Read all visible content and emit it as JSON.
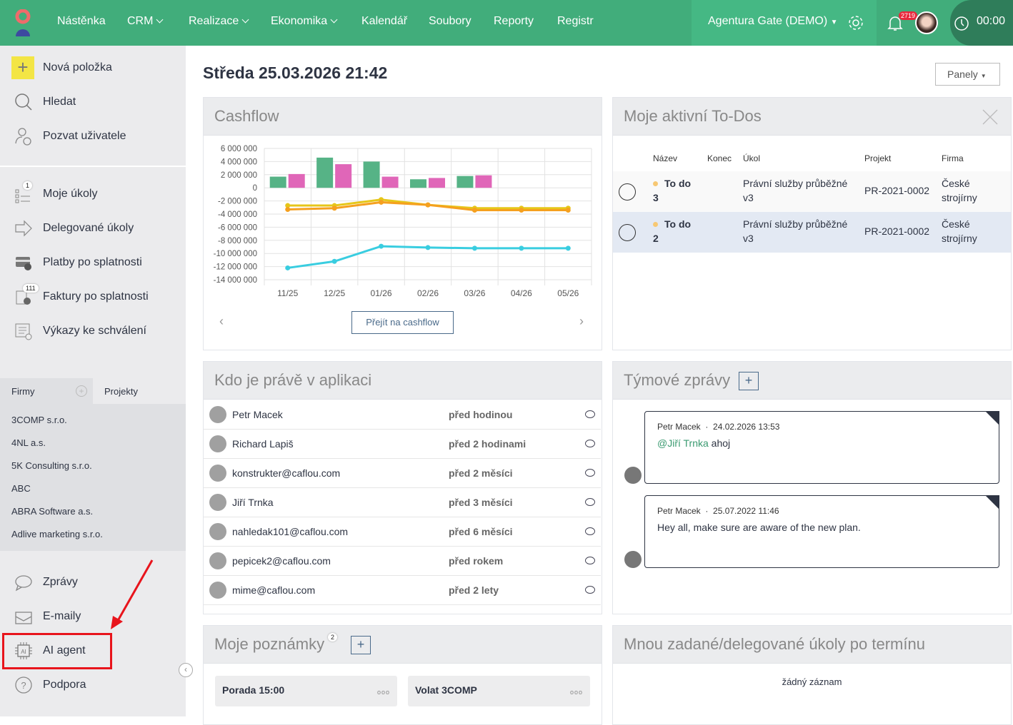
{
  "topbar": {
    "nav": [
      "Nástěnka",
      "CRM",
      "Realizace",
      "Ekonomika",
      "Kalendář",
      "Soubory",
      "Reporty",
      "Registr"
    ],
    "org": "Agentura Gate (DEMO)",
    "notifications": "2719",
    "timer": "00:00"
  },
  "sidebar": {
    "top": [
      "Nová položka",
      "Hledat",
      "Pozvat uživatele"
    ],
    "tasks": [
      {
        "label": "Moje úkoly",
        "badge": "1"
      },
      {
        "label": "Delegované úkoly"
      },
      {
        "label": "Platby po splatnosti"
      },
      {
        "label": "Faktury po splatnosti",
        "badge": "111"
      },
      {
        "label": "Výkazy ke schválení"
      }
    ],
    "tabs": [
      "Firmy",
      "Projekty"
    ],
    "firms": [
      "3COMP s.r.o.",
      "4NL a.s.",
      "5K Consulting s.r.o.",
      "ABC",
      "ABRA Software a.s.",
      "Adlive marketing s.r.o."
    ],
    "bottom": [
      "Zprávy",
      "E-maily",
      "AI agent",
      "Podpora"
    ]
  },
  "header": {
    "date": "Středa 25.03.2026 21:42",
    "panels": "Panely"
  },
  "cashflow": {
    "title": "Cashflow",
    "button": "Přejít na cashflow"
  },
  "chart_data": {
    "type": "bar",
    "categories": [
      "11/25",
      "12/25",
      "01/26",
      "02/26",
      "03/26",
      "04/26",
      "05/26"
    ],
    "ylim": [
      -14000000,
      6000000
    ],
    "yticks": [
      "6 000 000",
      "4 000 000",
      "2 000 000",
      "0",
      "-2 000 000",
      "-4 000 000",
      "-6 000 000",
      "-8 000 000",
      "-10 000 000",
      "-12 000 000",
      "-14 000 000"
    ],
    "bars": [
      {
        "name": "income",
        "color": "#56b386",
        "values": [
          1700000,
          4600000,
          4000000,
          1300000,
          1800000,
          0,
          0
        ]
      },
      {
        "name": "expense",
        "color": "#e066b8",
        "values": [
          2100000,
          3600000,
          1700000,
          1500000,
          1900000,
          0,
          0
        ]
      }
    ],
    "lines": [
      {
        "name": "yellow",
        "color": "#e6c619",
        "values": [
          -2700000,
          -2700000,
          -1800000,
          -2600000,
          -3100000,
          -3100000,
          -3100000
        ]
      },
      {
        "name": "orange",
        "color": "#f5a01f",
        "values": [
          -3300000,
          -3100000,
          -2200000,
          -2600000,
          -3400000,
          -3400000,
          -3400000
        ]
      },
      {
        "name": "cyan",
        "color": "#39cde0",
        "values": [
          -12200000,
          -11200000,
          -8900000,
          -9100000,
          -9200000,
          -9200000,
          -9200000
        ]
      }
    ]
  },
  "todos": {
    "title": "Moje aktivní To-Dos",
    "columns": [
      "Název",
      "Konec",
      "Úkol",
      "Projekt",
      "Firma"
    ],
    "rows": [
      {
        "name": "To do",
        "num": "3",
        "task": "Právní služby průběžné",
        "task2": "v3",
        "project": "PR-2021-0002",
        "firm": "České",
        "firm2": "strojírny"
      },
      {
        "name": "To do",
        "num": "2",
        "task": "Právní služby průběžné",
        "task2": "v3",
        "project": "PR-2021-0002",
        "firm": "České",
        "firm2": "strojírny"
      }
    ]
  },
  "online": {
    "title": "Kdo je právě v aplikaci",
    "users": [
      {
        "name": "Petr Macek",
        "time": "před hodinou"
      },
      {
        "name": "Richard Lapiš",
        "time": "před 2 hodinami"
      },
      {
        "name": "konstrukter@caflou.com",
        "time": "před 2 měsíci"
      },
      {
        "name": "Jiří Trnka",
        "time": "před 3 měsíci"
      },
      {
        "name": "nahledak101@caflou.com",
        "time": "před 6 měsíci"
      },
      {
        "name": "pepicek2@caflou.com",
        "time": "před rokem"
      },
      {
        "name": "mime@caflou.com",
        "time": "před 2 lety"
      }
    ]
  },
  "team": {
    "title": "Týmové zprávy",
    "messages": [
      {
        "author": "Petr Macek",
        "date": "24.02.2026 13:53",
        "mention": "@Jiří Trnka",
        "text": " ahoj"
      },
      {
        "author": "Petr Macek",
        "date": "25.07.2022 11:46",
        "mention": "",
        "text": "Hey all, make sure are aware of the new plan."
      }
    ]
  },
  "notes": {
    "title": "Moje poznámky",
    "count": "2",
    "items": [
      "Porada 15:00",
      "Volat 3COMP"
    ]
  },
  "overdue": {
    "title": "Mnou zadané/delegované úkoly po termínu",
    "empty": "žádný záznam"
  }
}
